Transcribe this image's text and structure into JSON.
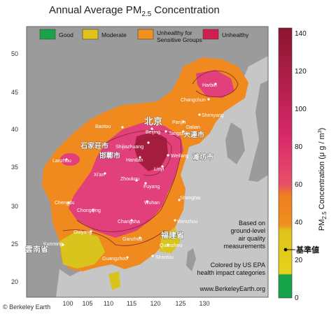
{
  "title": {
    "main": "Annual Average PM",
    "sub": "2.5",
    "tail": " Concentration"
  },
  "legend": {
    "items": [
      {
        "label": "Good",
        "color": "#1aa34a"
      },
      {
        "label": "Moderate",
        "color": "#e0c21c"
      },
      {
        "label": "Unhealthy for Sensitive Groups",
        "line1": "Unhealthy for",
        "line2": "Sensitive Groups",
        "color": "#f0901e"
      },
      {
        "label": "Unhealthy",
        "color": "#d21f52"
      }
    ]
  },
  "axes": {
    "lat_ticks": [
      "50",
      "45",
      "40",
      "35",
      "30",
      "25",
      "20"
    ],
    "lon_ticks": [
      "100",
      "105",
      "110",
      "115",
      "120",
      "125",
      "130"
    ]
  },
  "colorbar": {
    "ticks": [
      "140",
      "120",
      "100",
      "80",
      "60",
      "40",
      "20",
      "0"
    ],
    "label_main": "PM",
    "label_sub": "2.5",
    "label_tail": " Concentration (μ g / m",
    "label_sup": "3",
    "label_end": ")",
    "max": 140,
    "min": 0
  },
  "cities": {
    "harbin": "Harbin",
    "changchun": "Changchun",
    "shenyang": "Shenyang",
    "panjin": "Panjin",
    "dalian": "Dalian",
    "baotou": "Baotou",
    "beijing": "Beijing",
    "tangshan": "Tangshan",
    "shijiazhuang": "Shijiazhuang",
    "handan": "Handan",
    "weifang": "Weifang",
    "lanzhou": "Lanzhou",
    "xian": "Xi'an",
    "linyi": "Linyi",
    "zhoukou": "Zhoukou",
    "fuyang": "Fuyang",
    "shanghai": "Shanghai",
    "chengdu": "Chengdu",
    "chongqing": "Chongqing",
    "wuhan": "Wuhan",
    "changsha": "Changsha",
    "wenzhou": "Wenzhou",
    "guiyang": "Guiyang",
    "ganzhou": "Ganzhou",
    "quanzhou": "Quanzhou",
    "kunming": "Kunming",
    "guangzhou": "Guangzhou",
    "shantou": "Shantou"
  },
  "cjk_labels": {
    "beijing": "北京",
    "dalian": "大連市",
    "shijiazhuang": "石家荘市",
    "handan": "邯鄲市",
    "weifang": "濰坊市",
    "fujian": "福建省",
    "yunnan": "雲南省"
  },
  "notes": {
    "line1": "Based on",
    "line2": "ground-level",
    "line3": "air quality",
    "line4": "measurements",
    "line5": "Colored by US EPA",
    "line6": "health impact categories",
    "url": "www.BerkeleyEarth.org"
  },
  "annotation": "基準値",
  "footer": "© Berkeley Earth",
  "colors": {
    "ocean": "#c6c6c6",
    "land": "#9b9b9b",
    "orange": "#f08a1e",
    "pink": "#e2407a",
    "darkred": "#a51d3f",
    "yellow": "#ded21f",
    "green": "#1aa34a"
  }
}
